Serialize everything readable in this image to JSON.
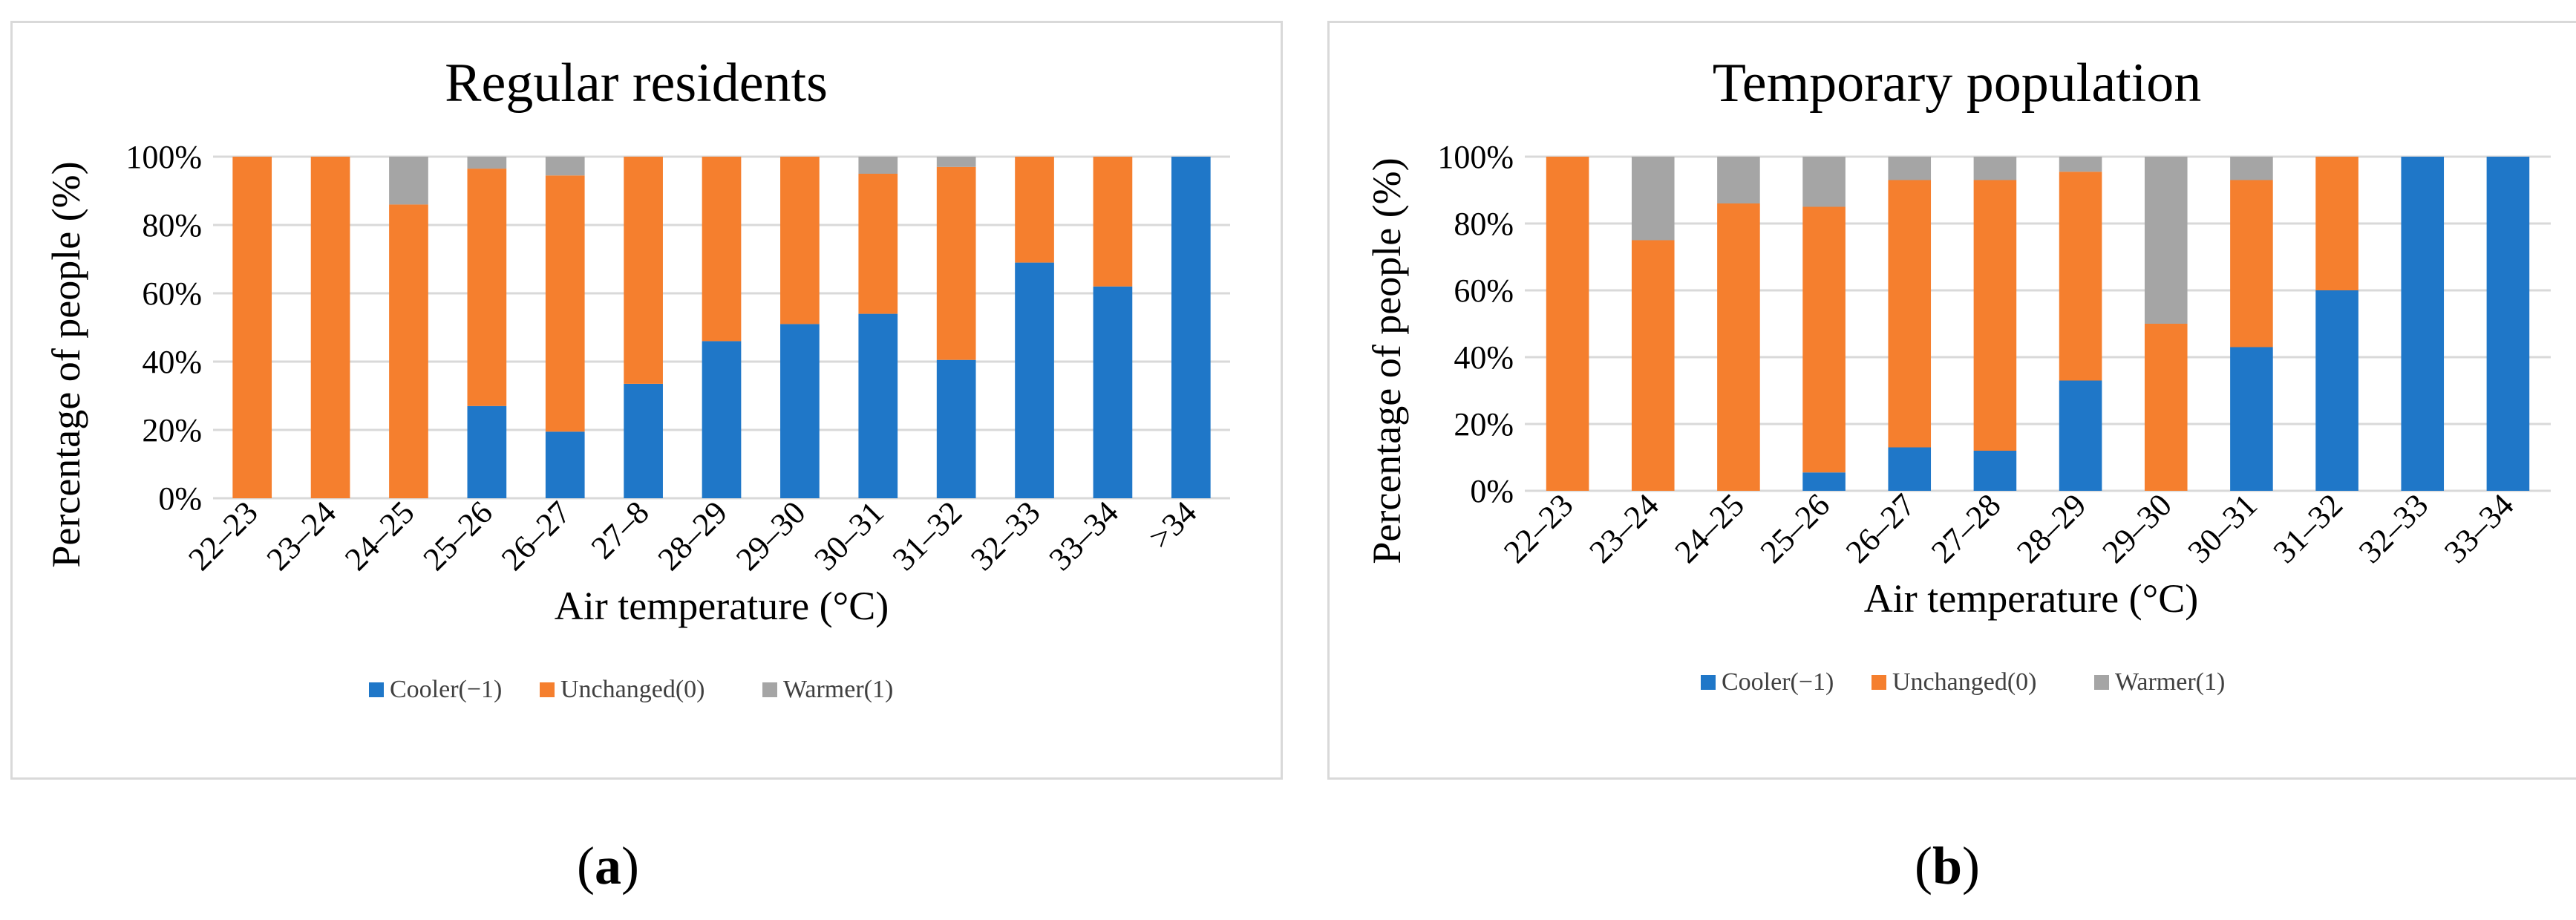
{
  "colors": {
    "cooler": "#1F77C8",
    "unchanged": "#F57F2E",
    "warmer": "#A5A5A5",
    "grid": "#d9d9d9"
  },
  "legend": [
    "Cooler(−1)",
    "Unchanged(0)",
    "Warmer(1)"
  ],
  "sub_labels": [
    "a",
    "b"
  ],
  "chart_data": [
    {
      "type": "bar",
      "stacked": true,
      "title": "Regular residents",
      "xlabel": "Air temperature (°C)",
      "ylabel": "Percentage of people (%)",
      "ylim": [
        0,
        100
      ],
      "yticks": [
        "0%",
        "20%",
        "40%",
        "60%",
        "80%",
        "100%"
      ],
      "categories": [
        "22–23",
        "23–24",
        "24–25",
        "25–26",
        "26–27",
        "27–8",
        "28–29",
        "29–30",
        "30–31",
        "31–32",
        "32–33",
        "33–34",
        ">34"
      ],
      "series": [
        {
          "name": "Cooler(−1)",
          "values": [
            0,
            0,
            0,
            27,
            19.5,
            33.5,
            46,
            51,
            54,
            40.5,
            69,
            62,
            100
          ]
        },
        {
          "name": "Unchanged(0)",
          "values": [
            100,
            100,
            86,
            69.5,
            75,
            66.5,
            54,
            49,
            41,
            56.5,
            31,
            38,
            0
          ]
        },
        {
          "name": "Warmer(1)",
          "values": [
            0,
            0,
            14,
            3.5,
            5.5,
            0,
            0,
            0,
            5,
            3,
            0,
            0,
            0
          ]
        }
      ]
    },
    {
      "type": "bar",
      "stacked": true,
      "title": "Temporary population",
      "xlabel": "Air temperature (°C)",
      "ylabel": "Percentage of people (%)",
      "ylim": [
        0,
        100
      ],
      "yticks": [
        "0%",
        "20%",
        "40%",
        "60%",
        "80%",
        "100%"
      ],
      "categories": [
        "22–23",
        "23–24",
        "24–25",
        "25–26",
        "26–27",
        "27–28",
        "28–29",
        "29–30",
        "30–31",
        "31–32",
        "32–33",
        "33–34"
      ],
      "series": [
        {
          "name": "Cooler(−1)",
          "values": [
            0,
            0,
            0,
            5.5,
            13,
            12,
            33,
            0,
            43,
            60,
            100,
            100
          ]
        },
        {
          "name": "Unchanged(0)",
          "values": [
            100,
            75,
            86,
            79.5,
            80,
            81,
            62.5,
            50,
            50,
            40,
            0,
            0
          ]
        },
        {
          "name": "Warmer(1)",
          "values": [
            0,
            25,
            14,
            15,
            7,
            7,
            4.5,
            50,
            7,
            0,
            0,
            0
          ]
        }
      ]
    }
  ]
}
